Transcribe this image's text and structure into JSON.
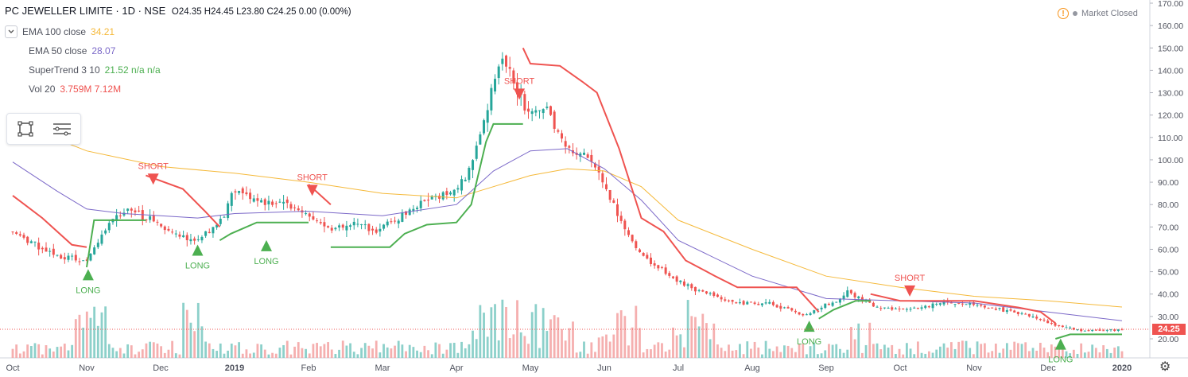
{
  "header": {
    "symbol_title": "PC JEWELLER LIMITE · 1D · NSE",
    "ohlc": "O24.35 H24.45 L23.80 C24.25 0.00 (0.00%)",
    "market_status": "Market Closed"
  },
  "indicators": [
    {
      "name": "EMA 100 close",
      "value": "34.21",
      "color": "#f5b93a"
    },
    {
      "name": "EMA 50 close",
      "value": "28.07",
      "color": "#7b68c8"
    },
    {
      "name": "SuperTrend 3 10",
      "value": "21.52  n/a  n/a",
      "color": "#4caf50"
    },
    {
      "name": "Vol 20",
      "value": "3.759M  7.12M",
      "color": "#ef5350"
    }
  ],
  "last_price_label": "24.25",
  "signals": {
    "long_label": "LONG",
    "short_label": "SHORT"
  },
  "colors": {
    "up": "#26a69a",
    "down": "#ef5350",
    "up_vol": "#80cbc4",
    "down_vol": "#f4a6a6",
    "ema100": "#f5b93a",
    "ema50": "#7b68c8",
    "st_up": "#4caf50",
    "st_down": "#ef5350"
  },
  "chart_data": {
    "type": "candlestick",
    "y_axis": {
      "ticks": [
        20,
        30,
        40,
        50,
        60,
        70,
        80,
        90,
        100,
        110,
        120,
        130,
        140,
        150,
        160,
        170
      ],
      "tick_labels": [
        "20.00",
        "30.00",
        "40.00",
        "50.00",
        "60.00",
        "70.00",
        "80.00",
        "90.00",
        "100.00",
        "110.00",
        "120.00",
        "130.00",
        "140.00",
        "150.00",
        "160.00",
        "170.00"
      ],
      "range": [
        15,
        170
      ]
    },
    "x_axis": {
      "labels": [
        "Oct",
        "Nov",
        "Dec",
        "2019",
        "Feb",
        "Mar",
        "Apr",
        "May",
        "Jun",
        "Jul",
        "Aug",
        "Sep",
        "Oct",
        "Nov",
        "Dec",
        "2020"
      ],
      "months_offset": [
        0,
        1,
        2,
        3,
        4,
        5,
        6,
        7,
        8,
        9,
        10,
        11,
        12,
        13,
        14,
        15
      ]
    },
    "price_path": [
      [
        0,
        68
      ],
      [
        0.3,
        62
      ],
      [
        0.6,
        57
      ],
      [
        1,
        55
      ],
      [
        1.3,
        72
      ],
      [
        1.6,
        78
      ],
      [
        1.9,
        72
      ],
      [
        2.2,
        67
      ],
      [
        2.5,
        64
      ],
      [
        2.8,
        72
      ],
      [
        3,
        86
      ],
      [
        3.3,
        82
      ],
      [
        3.7,
        80
      ],
      [
        4,
        76
      ],
      [
        4.3,
        68
      ],
      [
        4.6,
        72
      ],
      [
        4.9,
        68
      ],
      [
        5.1,
        72
      ],
      [
        5.4,
        78
      ],
      [
        5.7,
        84
      ],
      [
        6,
        86
      ],
      [
        6.2,
        98
      ],
      [
        6.4,
        120
      ],
      [
        6.6,
        146
      ],
      [
        6.8,
        132
      ],
      [
        7,
        120
      ],
      [
        7.2,
        125
      ],
      [
        7.4,
        110
      ],
      [
        7.6,
        104
      ],
      [
        7.8,
        102
      ],
      [
        8,
        88
      ],
      [
        8.2,
        75
      ],
      [
        8.4,
        62
      ],
      [
        8.6,
        55
      ],
      [
        8.8,
        50
      ],
      [
        9,
        46
      ],
      [
        9.3,
        41
      ],
      [
        9.6,
        38
      ],
      [
        9.9,
        36
      ],
      [
        10.2,
        36
      ],
      [
        10.5,
        33
      ],
      [
        10.7,
        30
      ],
      [
        10.9,
        34
      ],
      [
        11.1,
        36
      ],
      [
        11.3,
        41
      ],
      [
        11.5,
        37
      ],
      [
        11.7,
        34
      ],
      [
        12,
        33
      ],
      [
        12.3,
        34
      ],
      [
        12.6,
        36
      ],
      [
        12.9,
        36
      ],
      [
        13.2,
        34
      ],
      [
        13.5,
        32
      ],
      [
        13.8,
        30
      ],
      [
        14.1,
        26
      ],
      [
        14.4,
        24
      ],
      [
        14.7,
        23.5
      ],
      [
        15,
        24.25
      ]
    ],
    "ema100": [
      [
        0,
        117
      ],
      [
        1,
        104
      ],
      [
        2,
        97
      ],
      [
        3,
        94
      ],
      [
        4,
        90
      ],
      [
        5,
        85
      ],
      [
        6,
        83
      ],
      [
        7,
        93
      ],
      [
        7.5,
        96
      ],
      [
        8,
        95
      ],
      [
        8.5,
        88
      ],
      [
        9,
        73
      ],
      [
        10,
        60
      ],
      [
        11,
        48
      ],
      [
        12,
        43
      ],
      [
        13,
        39
      ],
      [
        14,
        37
      ],
      [
        15,
        34.21
      ]
    ],
    "ema50": [
      [
        0,
        99
      ],
      [
        0.6,
        86
      ],
      [
        1,
        78
      ],
      [
        1.5,
        76
      ],
      [
        2,
        75
      ],
      [
        2.5,
        74
      ],
      [
        3,
        76
      ],
      [
        4,
        77
      ],
      [
        5,
        75
      ],
      [
        6,
        80
      ],
      [
        6.5,
        95
      ],
      [
        7,
        104
      ],
      [
        7.5,
        105
      ],
      [
        8,
        96
      ],
      [
        8.5,
        82
      ],
      [
        9,
        64
      ],
      [
        10,
        48
      ],
      [
        11,
        38
      ],
      [
        12,
        37
      ],
      [
        13,
        36
      ],
      [
        14,
        32
      ],
      [
        15,
        28.07
      ]
    ],
    "supertrend_segments": [
      {
        "dir": "down",
        "points": [
          [
            0,
            84
          ],
          [
            0.4,
            74
          ],
          [
            0.8,
            62
          ],
          [
            1,
            61
          ]
        ]
      },
      {
        "dir": "up",
        "points": [
          [
            1,
            52
          ],
          [
            1.1,
            73
          ],
          [
            1.8,
            73
          ]
        ]
      },
      {
        "dir": "down",
        "points": [
          [
            1.8,
            93
          ],
          [
            2.3,
            87
          ],
          [
            2.6,
            77
          ],
          [
            2.8,
            70
          ]
        ]
      },
      {
        "dir": "up",
        "points": [
          [
            2.8,
            64
          ],
          [
            2.95,
            67
          ],
          [
            3.3,
            72
          ],
          [
            4,
            72
          ]
        ]
      },
      {
        "dir": "down",
        "points": [
          [
            4,
            89
          ],
          [
            4.3,
            80
          ]
        ]
      },
      {
        "dir": "up",
        "points": [
          [
            4.3,
            61
          ],
          [
            4.7,
            61
          ],
          [
            5.1,
            61
          ],
          [
            5.3,
            67
          ],
          [
            5.6,
            71
          ],
          [
            6,
            72
          ],
          [
            6.2,
            80
          ],
          [
            6.4,
            108
          ],
          [
            6.5,
            116
          ],
          [
            6.9,
            116
          ]
        ]
      },
      {
        "dir": "down",
        "points": [
          [
            6.9,
            150
          ],
          [
            7.0,
            143
          ],
          [
            7.4,
            142
          ],
          [
            7.7,
            135
          ],
          [
            7.9,
            130
          ],
          [
            8.2,
            105
          ],
          [
            8.5,
            74
          ],
          [
            8.8,
            68
          ],
          [
            9.1,
            55
          ],
          [
            9.5,
            48
          ],
          [
            9.8,
            43
          ],
          [
            10.6,
            43
          ],
          [
            10.9,
            32
          ]
        ]
      },
      {
        "dir": "up",
        "points": [
          [
            10.9,
            29
          ],
          [
            11.1,
            33
          ],
          [
            11.4,
            37
          ],
          [
            11.6,
            37
          ]
        ]
      },
      {
        "dir": "down",
        "points": [
          [
            11.6,
            40
          ],
          [
            12,
            37
          ],
          [
            13,
            37
          ],
          [
            13.6,
            34
          ],
          [
            13.9,
            32
          ],
          [
            14.1,
            27
          ]
        ]
      },
      {
        "dir": "up",
        "points": [
          [
            14.1,
            20
          ],
          [
            14.3,
            22
          ],
          [
            15,
            22
          ]
        ]
      }
    ],
    "long_signals": [
      [
        1.02,
        49
      ],
      [
        2.5,
        60
      ],
      [
        3.43,
        62
      ],
      [
        10.77,
        26
      ],
      [
        14.17,
        18
      ]
    ],
    "short_signals": [
      [
        1.9,
        91
      ],
      [
        4.05,
        86
      ],
      [
        6.85,
        129
      ],
      [
        12.13,
        41
      ]
    ],
    "last_price": 24.25
  }
}
